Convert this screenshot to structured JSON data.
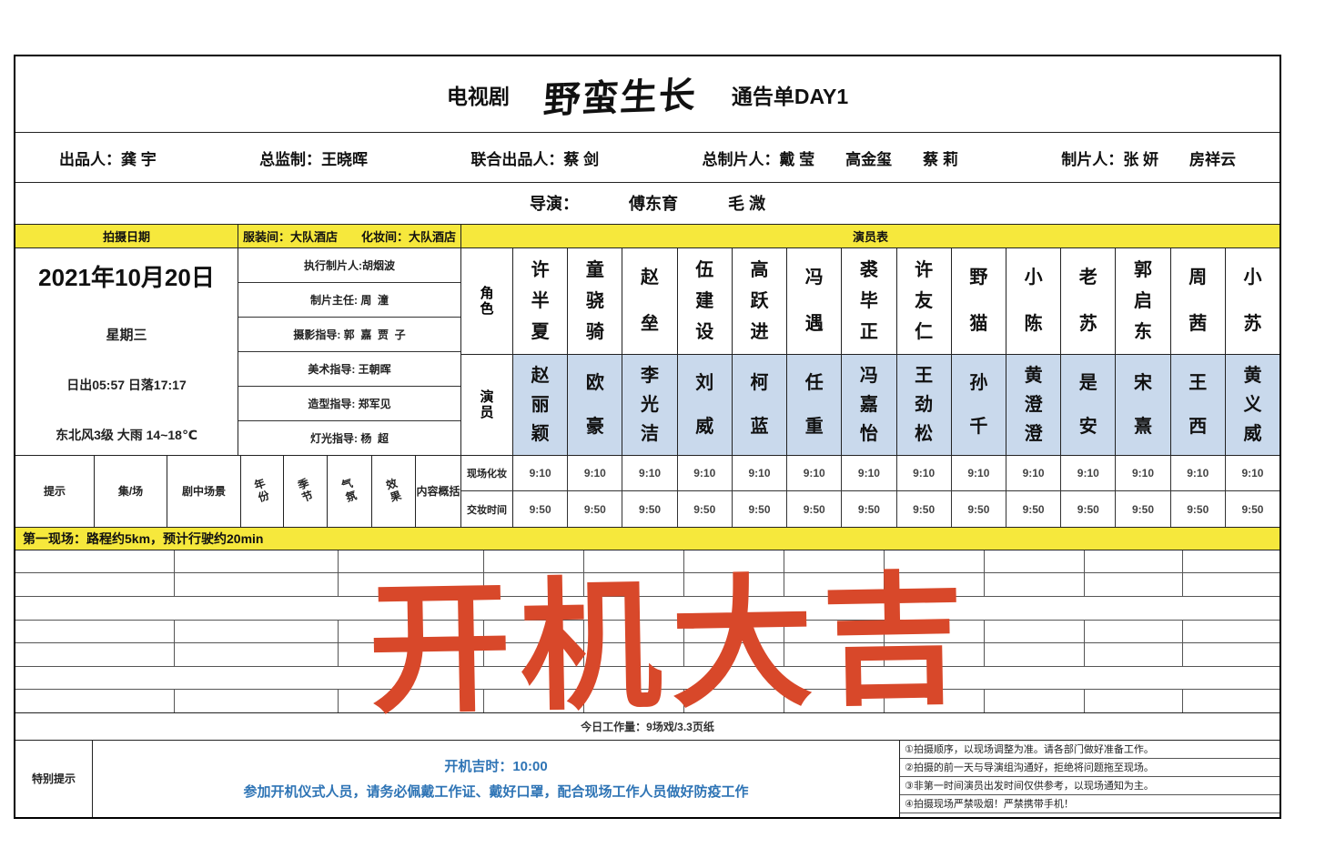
{
  "header": {
    "show_type": "电视剧",
    "logo": "野蛮生长",
    "doc_title": "通告单DAY1"
  },
  "credits": {
    "items": [
      {
        "label": "出品人：",
        "value": "龚 宇"
      },
      {
        "label": "总监制：",
        "value": "王晓晖"
      },
      {
        "label": "联合出品人：",
        "value": "蔡 剑"
      },
      {
        "label": "总制片人：",
        "value": "戴 莹　　高金玺　　蔡 莉"
      },
      {
        "label": "制片人：",
        "value": "张 妍　　房祥云"
      }
    ]
  },
  "director": {
    "label": "导演：",
    "names": [
      "傅东育",
      "毛 溦"
    ]
  },
  "schedule_header": {
    "date_label": "拍摄日期",
    "rooms": "服装间：大队酒店　　化妆间：大队酒店",
    "cast_label": "演员表"
  },
  "shoot_info": {
    "date": "2021年10月20日",
    "weekday": "星期三",
    "sun": "日出05:57  日落17:17",
    "weather": "东北风3级 大雨 14~18℃"
  },
  "staff": [
    "执行制片人:胡烟波",
    "制片主任: 周  潼",
    "摄影指导: 郭  嘉  贾  子",
    "美术指导: 王朝晖",
    "造型指导: 郑军见",
    "灯光指导: 杨  超"
  ],
  "cast": {
    "role_label": "角色",
    "actor_label": "演员",
    "columns": [
      {
        "role": "许半夏",
        "actor": "赵丽颖"
      },
      {
        "role": "童骁骑",
        "actor": "欧豪"
      },
      {
        "role": "赵垒",
        "actor": "李光洁"
      },
      {
        "role": "伍建设",
        "actor": "刘威"
      },
      {
        "role": "高跃进",
        "actor": "柯蓝"
      },
      {
        "role": "冯遇",
        "actor": "任重"
      },
      {
        "role": "裘毕正",
        "actor": "冯嘉怡"
      },
      {
        "role": "许友仁",
        "actor": "王劲松"
      },
      {
        "role": "野猫",
        "actor": "孙千"
      },
      {
        "role": "小陈",
        "actor": "黄澄澄"
      },
      {
        "role": "老苏",
        "actor": "是安"
      },
      {
        "role": "郭启东",
        "actor": "宋熹"
      },
      {
        "role": "周茜",
        "actor": "王西"
      },
      {
        "role": "小苏",
        "actor": "黄义威"
      }
    ],
    "makeup_label": "现场化妆",
    "makeup_times": [
      "9:10",
      "9:10",
      "9:10",
      "9:10",
      "9:10",
      "9:10",
      "9:10",
      "9:10",
      "9:10",
      "9:10",
      "9:10",
      "9:10",
      "9:10",
      "9:10"
    ],
    "handover_label": "交妆时间",
    "handover_times": [
      "9:50",
      "9:50",
      "9:50",
      "9:50",
      "9:50",
      "9:50",
      "9:50",
      "9:50",
      "9:50",
      "9:50",
      "9:50",
      "9:50",
      "9:50",
      "9:50"
    ]
  },
  "scene_header": [
    "提示",
    "集/场",
    "剧中场景",
    "年份",
    "季节",
    "气氛",
    "效果",
    "内容概括"
  ],
  "location_bar": "第一现场：路程约5km，预计行驶约20min",
  "scene_grid": {
    "rows": [
      "cells",
      "cells",
      "merged",
      "cells",
      "cells",
      "merged",
      "cells"
    ]
  },
  "banner": "开机大吉",
  "workload": "今日工作量：9场戏/3.3页纸",
  "footer": {
    "label": "特别提示",
    "notice_line1": "开机吉时：10:00",
    "notice_line2": "参加开机仪式人员，请务必佩戴工作证、戴好口罩，配合现场工作人员做好防疫工作",
    "notes": [
      "①拍摄顺序，以现场调整为准。请各部门做好准备工作。",
      "②拍摄的前一天与导演组沟通好，拒绝将问题拖至现场。",
      "③非第一时间演员出发时间仅供参考，以现场通知为主。",
      "④拍摄现场严禁吸烟！严禁携带手机！"
    ]
  },
  "colors": {
    "yellow": "#f6e83c",
    "actor_row_blue": "#c9d9ec",
    "banner_red": "#d8482a",
    "notice_blue": "#2e74b5"
  }
}
